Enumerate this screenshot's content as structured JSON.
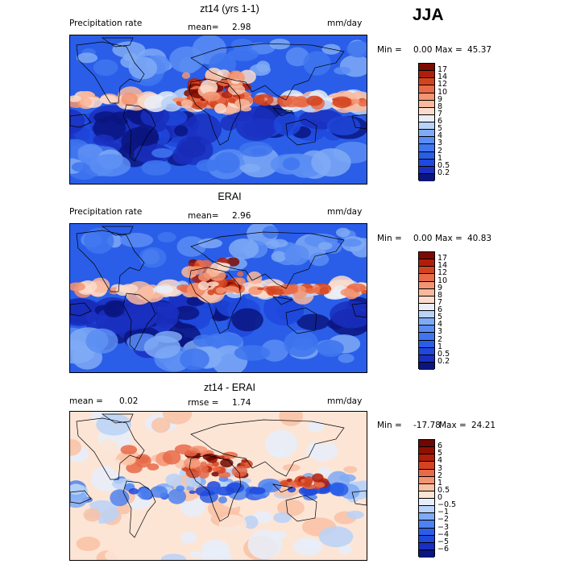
{
  "season": "JJA",
  "chart_data": [
    {
      "type": "heatmap",
      "title": "zt14 (yrs 1-1)",
      "field_label": "Precipitation rate",
      "mean_label": "mean=",
      "mean_value": "2.98",
      "units": "mm/day",
      "min_label": "Min =",
      "min_value": "0.00",
      "max_label": "Max =",
      "max_value": "45.37",
      "levels": [
        "0.2",
        "0.5",
        "1",
        "2",
        "3",
        "4",
        "5",
        "6",
        "7",
        "8",
        "9",
        "10",
        "12",
        "14",
        "17"
      ]
    },
    {
      "type": "heatmap",
      "title": "ERAI",
      "field_label": "Precipitation rate",
      "mean_label": "mean=",
      "mean_value": "2.96",
      "units": "mm/day",
      "min_label": "Min =",
      "min_value": "0.00",
      "max_label": "Max =",
      "max_value": "40.83",
      "levels": [
        "0.2",
        "0.5",
        "1",
        "2",
        "3",
        "4",
        "5",
        "6",
        "7",
        "8",
        "9",
        "10",
        "12",
        "14",
        "17"
      ]
    },
    {
      "type": "heatmap",
      "title": "zt14 - ERAI",
      "mean_label": "mean =",
      "mean_value": "0.02",
      "rmse_label": "rmse =",
      "rmse_value": "1.74",
      "units": "mm/day",
      "min_label": "Min =",
      "min_value": "-17.78",
      "max_label": "Max =",
      "max_value": "24.21",
      "levels": [
        "−6",
        "−5",
        "−4",
        "−3",
        "−2",
        "−1",
        "−0.5",
        "0",
        "0.5",
        "1",
        "2",
        "3",
        "4",
        "5",
        "6"
      ]
    }
  ],
  "colors": {
    "seq": [
      "#0a1580",
      "#1a2fbf",
      "#1f48dc",
      "#2a5ee8",
      "#3f75ef",
      "#5a8df3",
      "#7faaf5",
      "#b8d2f8",
      "#e9eef8",
      "#fcdccb",
      "#f9b99c",
      "#f39472",
      "#e86a48",
      "#d3431f",
      "#b01e0a",
      "#7d0a00"
    ],
    "div": [
      "#0a1580",
      "#1a2fbf",
      "#1f48dc",
      "#2a5ee8",
      "#4e82f0",
      "#7faaf5",
      "#b8d2f8",
      "#e6eefa",
      "#fde5d6",
      "#f9c2a5",
      "#f39472",
      "#e86a48",
      "#d3431f",
      "#b01e0a",
      "#8e1000",
      "#6e0800"
    ]
  }
}
